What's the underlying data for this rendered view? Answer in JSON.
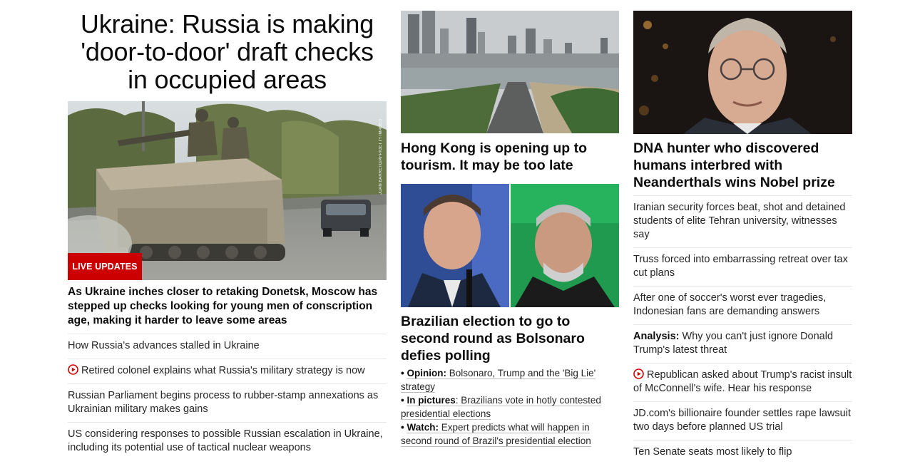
{
  "column1": {
    "headline": "Ukraine: Russia is making 'door-to-door' draft checks in occupied areas",
    "badge": "LIVE UPDATES",
    "photo_credit": "JUAN BARRETO/AFP/GETTY IMAGES",
    "summary": "As Ukraine inches closer to retaking Donetsk, Moscow has stepped up checks looking for young men of conscription age, making it harder to leave some areas",
    "items": [
      {
        "text": "How Russia's advances stalled in Ukraine"
      },
      {
        "text": "Retired colonel explains what Russia's military strategy is now"
      },
      {
        "text": "Russian Parliament begins process to rubber-stamp annexations as Ukrainian military makes gains"
      },
      {
        "text": "US considering responses to possible Russian escalation in Ukraine, including its potential use of tactical nuclear weapons"
      }
    ]
  },
  "column2": {
    "hk_headline": "Hong Kong is opening up to tourism. It may be too late",
    "brazil_headline": "Brazilian election to go to second round as Bolsonaro defies polling",
    "bullets": [
      {
        "prefix": "Opinion:",
        "text": "Bolsonaro, Trump and the 'Big Lie' strategy"
      },
      {
        "prefix": "In pictures",
        "text": ": Brazilians vote in hotly contested presidential elections"
      },
      {
        "prefix": "Watch:",
        "text": "Expert predicts what will happen in second round of Brazil's presidential election"
      }
    ]
  },
  "column3": {
    "headline": "DNA hunter who discovered humans interbred with Neanderthals wins Nobel prize",
    "items": [
      {
        "text": "Iranian security forces beat, shot and detained students of elite Tehran university, witnesses say"
      },
      {
        "text": "Truss forced into embarrassing retreat over tax cut plans"
      },
      {
        "text": "After one of soccer's worst ever tragedies, Indonesian fans are demanding answers"
      },
      {
        "prefix": "Analysis:",
        "text": "Why you can't just ignore Donald Trump's latest threat"
      },
      {
        "text": "Republican asked about Trump's racist insult of McConnell's wife. Hear his response"
      },
      {
        "text": "JD.com's billionaire founder settles rape lawsuit two days before planned US trial"
      },
      {
        "text": "Ten Senate seats most likely to flip"
      }
    ]
  },
  "colors": {
    "accent_red": "#cc0000",
    "divider": "#e6e6e6",
    "text": "#0c0c0c"
  }
}
